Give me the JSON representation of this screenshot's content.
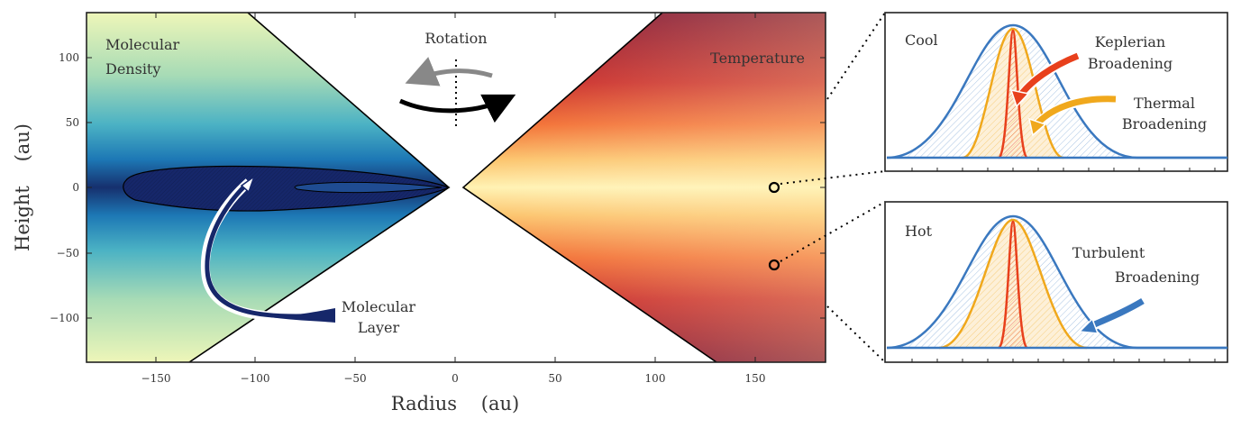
{
  "axes": {
    "xlabel": "Radius    (au)",
    "ylabel": "Height    (au)",
    "xticks": [
      "−150",
      "−100",
      "−50",
      "0",
      "50",
      "100",
      "150"
    ],
    "yticks": [
      "100",
      "50",
      "0",
      "−50",
      "−100"
    ]
  },
  "labels": {
    "density": [
      "Molecular",
      "Density"
    ],
    "temperature": "Temperature",
    "rotation": "Rotation",
    "molecular_layer": [
      "Molecular",
      "Layer"
    ]
  },
  "panels": {
    "cool": {
      "title": "Cool",
      "keplerian": [
        "Keplerian",
        "Broadening"
      ],
      "thermal": [
        "Thermal",
        "Broadening"
      ]
    },
    "hot": {
      "title": "Hot",
      "turbulent": [
        "Turbulent",
        "Broadening"
      ]
    }
  },
  "colors": {
    "dense": "#16276a",
    "blue_line": "#3a78bf",
    "thermal_line": "#f0a81c",
    "keplerian_line": "#e8401c",
    "hot_dark": "#7e0623",
    "hot_light": "#fff2b2"
  }
}
